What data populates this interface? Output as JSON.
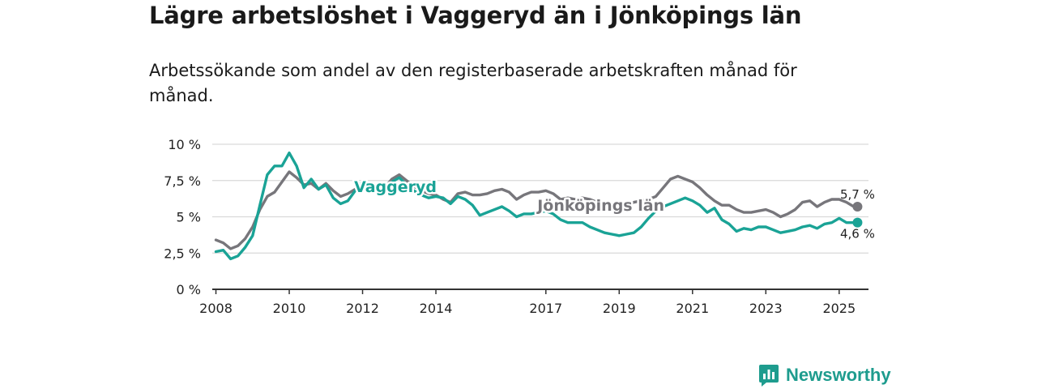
{
  "title": "Lägre arbetslöshet i Vaggeryd än i Jönköpings län",
  "subtitle": "Arbetssökande som andel av den registerbaserade arbetskraften månad för månad.",
  "logo": {
    "text": "Newsworthy",
    "icon": "newsworthy-logo-icon"
  },
  "colors": {
    "vaggeryd": "#1aa396",
    "lan": "#77767b",
    "grid": "#d9d9d9",
    "axis": "#333333"
  },
  "chart_data": {
    "type": "line",
    "title": "Lägre arbetslöshet i Vaggeryd än i Jönköpings län",
    "xlabel": "",
    "ylabel": "",
    "xlim": [
      2007.9,
      2025.8
    ],
    "ylim": [
      0,
      10
    ],
    "y_ticks": [
      {
        "value": 0,
        "label": "0 %"
      },
      {
        "value": 2.5,
        "label": "2,5 %"
      },
      {
        "value": 5,
        "label": "5 %"
      },
      {
        "value": 7.5,
        "label": "7,5 %"
      },
      {
        "value": 10,
        "label": "10 %"
      }
    ],
    "x_ticks": [
      {
        "value": 2008,
        "label": "2008"
      },
      {
        "value": 2010,
        "label": "2010"
      },
      {
        "value": 2012,
        "label": "2012"
      },
      {
        "value": 2014,
        "label": "2014"
      },
      {
        "value": 2017,
        "label": "2017"
      },
      {
        "value": 2019,
        "label": "2019"
      },
      {
        "value": 2021,
        "label": "2021"
      },
      {
        "value": 2023,
        "label": "2023"
      },
      {
        "value": 2025,
        "label": "2025"
      }
    ],
    "series": [
      {
        "name": "Jönköpings län",
        "label": "Jönköpings län",
        "end_label": "5,7 %",
        "points": [
          [
            2008,
            3.4
          ],
          [
            2008.2,
            3.2
          ],
          [
            2008.4,
            2.8
          ],
          [
            2008.6,
            3.0
          ],
          [
            2008.8,
            3.5
          ],
          [
            2009,
            4.3
          ],
          [
            2009.2,
            5.5
          ],
          [
            2009.4,
            6.4
          ],
          [
            2009.6,
            6.7
          ],
          [
            2009.8,
            7.4
          ],
          [
            2010,
            8.1
          ],
          [
            2010.2,
            7.7
          ],
          [
            2010.4,
            7.2
          ],
          [
            2010.6,
            7.3
          ],
          [
            2010.8,
            6.9
          ],
          [
            2011,
            7.3
          ],
          [
            2011.2,
            6.8
          ],
          [
            2011.4,
            6.4
          ],
          [
            2011.6,
            6.6
          ],
          [
            2011.8,
            6.9
          ],
          [
            2012,
            7.2
          ],
          [
            2012.2,
            7.1
          ],
          [
            2012.4,
            6.7
          ],
          [
            2012.6,
            7.0
          ],
          [
            2012.8,
            7.6
          ],
          [
            2013,
            7.9
          ],
          [
            2013.2,
            7.5
          ],
          [
            2013.4,
            7.1
          ],
          [
            2013.6,
            6.8
          ],
          [
            2013.8,
            6.6
          ],
          [
            2014,
            6.5
          ],
          [
            2014.2,
            6.2
          ],
          [
            2014.4,
            6.0
          ],
          [
            2014.6,
            6.6
          ],
          [
            2014.8,
            6.7
          ],
          [
            2015,
            6.5
          ],
          [
            2015.2,
            6.5
          ],
          [
            2015.4,
            6.6
          ],
          [
            2015.6,
            6.8
          ],
          [
            2015.8,
            6.9
          ],
          [
            2016,
            6.7
          ],
          [
            2016.2,
            6.2
          ],
          [
            2016.4,
            6.5
          ],
          [
            2016.6,
            6.7
          ],
          [
            2016.8,
            6.7
          ],
          [
            2017,
            6.8
          ],
          [
            2017.2,
            6.6
          ],
          [
            2017.4,
            6.2
          ],
          [
            2017.6,
            6.3
          ],
          [
            2017.8,
            6.2
          ],
          [
            2018,
            6.3
          ],
          [
            2018.2,
            6.2
          ],
          [
            2018.4,
            6.0
          ],
          [
            2018.6,
            5.6
          ],
          [
            2018.8,
            5.8
          ],
          [
            2019,
            5.7
          ],
          [
            2019.2,
            5.8
          ],
          [
            2019.4,
            6.0
          ],
          [
            2019.6,
            6.1
          ],
          [
            2019.8,
            6.2
          ],
          [
            2020,
            6.4
          ],
          [
            2020.2,
            7.0
          ],
          [
            2020.4,
            7.6
          ],
          [
            2020.6,
            7.8
          ],
          [
            2020.8,
            7.6
          ],
          [
            2021,
            7.4
          ],
          [
            2021.2,
            7.0
          ],
          [
            2021.4,
            6.5
          ],
          [
            2021.6,
            6.1
          ],
          [
            2021.8,
            5.8
          ],
          [
            2022,
            5.8
          ],
          [
            2022.2,
            5.5
          ],
          [
            2022.4,
            5.3
          ],
          [
            2022.6,
            5.3
          ],
          [
            2022.8,
            5.4
          ],
          [
            2023,
            5.5
          ],
          [
            2023.2,
            5.3
          ],
          [
            2023.4,
            5.0
          ],
          [
            2023.6,
            5.2
          ],
          [
            2023.8,
            5.5
          ],
          [
            2024,
            6.0
          ],
          [
            2024.2,
            6.1
          ],
          [
            2024.4,
            5.7
          ],
          [
            2024.6,
            6.0
          ],
          [
            2024.8,
            6.2
          ],
          [
            2025,
            6.2
          ],
          [
            2025.2,
            6.0
          ],
          [
            2025.4,
            5.7
          ],
          [
            2025.5,
            5.7
          ]
        ]
      },
      {
        "name": "Vaggeryd",
        "label": "Vaggeryd",
        "end_label": "4,6 %",
        "points": [
          [
            2008,
            2.6
          ],
          [
            2008.2,
            2.7
          ],
          [
            2008.4,
            2.1
          ],
          [
            2008.6,
            2.3
          ],
          [
            2008.8,
            2.9
          ],
          [
            2009,
            3.7
          ],
          [
            2009.2,
            5.8
          ],
          [
            2009.4,
            7.9
          ],
          [
            2009.6,
            8.5
          ],
          [
            2009.8,
            8.5
          ],
          [
            2010,
            9.4
          ],
          [
            2010.2,
            8.5
          ],
          [
            2010.4,
            7.0
          ],
          [
            2010.6,
            7.6
          ],
          [
            2010.8,
            6.9
          ],
          [
            2011,
            7.2
          ],
          [
            2011.2,
            6.3
          ],
          [
            2011.4,
            5.9
          ],
          [
            2011.6,
            6.1
          ],
          [
            2011.8,
            6.8
          ],
          [
            2012,
            7.4
          ],
          [
            2012.2,
            7.0
          ],
          [
            2012.4,
            6.6
          ],
          [
            2012.6,
            6.9
          ],
          [
            2012.8,
            7.4
          ],
          [
            2013,
            7.7
          ],
          [
            2013.2,
            7.2
          ],
          [
            2013.4,
            6.8
          ],
          [
            2013.6,
            6.5
          ],
          [
            2013.8,
            6.3
          ],
          [
            2014,
            6.4
          ],
          [
            2014.2,
            6.3
          ],
          [
            2014.4,
            5.9
          ],
          [
            2014.6,
            6.4
          ],
          [
            2014.8,
            6.2
          ],
          [
            2015,
            5.8
          ],
          [
            2015.2,
            5.1
          ],
          [
            2015.4,
            5.3
          ],
          [
            2015.6,
            5.5
          ],
          [
            2015.8,
            5.7
          ],
          [
            2016,
            5.4
          ],
          [
            2016.2,
            5.0
          ],
          [
            2016.4,
            5.2
          ],
          [
            2016.6,
            5.2
          ],
          [
            2016.8,
            5.3
          ],
          [
            2017,
            5.4
          ],
          [
            2017.2,
            5.2
          ],
          [
            2017.4,
            4.8
          ],
          [
            2017.6,
            4.6
          ],
          [
            2017.8,
            4.6
          ],
          [
            2018,
            4.6
          ],
          [
            2018.2,
            4.3
          ],
          [
            2018.4,
            4.1
          ],
          [
            2018.6,
            3.9
          ],
          [
            2018.8,
            3.8
          ],
          [
            2019,
            3.7
          ],
          [
            2019.2,
            3.8
          ],
          [
            2019.4,
            3.9
          ],
          [
            2019.6,
            4.3
          ],
          [
            2019.8,
            4.9
          ],
          [
            2020,
            5.4
          ],
          [
            2020.2,
            5.7
          ],
          [
            2020.4,
            5.9
          ],
          [
            2020.6,
            6.1
          ],
          [
            2020.8,
            6.3
          ],
          [
            2021,
            6.1
          ],
          [
            2021.2,
            5.8
          ],
          [
            2021.4,
            5.3
          ],
          [
            2021.6,
            5.6
          ],
          [
            2021.8,
            4.8
          ],
          [
            2022,
            4.5
          ],
          [
            2022.2,
            4.0
          ],
          [
            2022.4,
            4.2
          ],
          [
            2022.6,
            4.1
          ],
          [
            2022.8,
            4.3
          ],
          [
            2023,
            4.3
          ],
          [
            2023.2,
            4.1
          ],
          [
            2023.4,
            3.9
          ],
          [
            2023.6,
            4.0
          ],
          [
            2023.8,
            4.1
          ],
          [
            2024,
            4.3
          ],
          [
            2024.2,
            4.4
          ],
          [
            2024.4,
            4.2
          ],
          [
            2024.6,
            4.5
          ],
          [
            2024.8,
            4.6
          ],
          [
            2025,
            4.9
          ],
          [
            2025.2,
            4.6
          ],
          [
            2025.4,
            4.6
          ],
          [
            2025.5,
            4.6
          ]
        ]
      }
    ]
  }
}
